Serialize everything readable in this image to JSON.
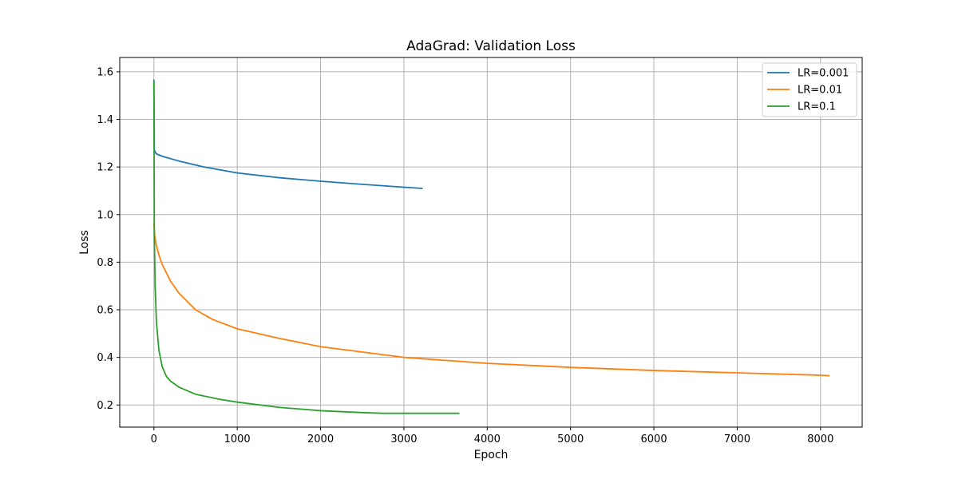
{
  "chart_data": {
    "type": "line",
    "title": "AdaGrad: Validation Loss",
    "xlabel": "Epoch",
    "ylabel": "Loss",
    "xlim": [
      -410,
      8500
    ],
    "ylim": [
      0.107,
      1.66
    ],
    "xticks": [
      0,
      1000,
      2000,
      3000,
      4000,
      5000,
      6000,
      7000,
      8000
    ],
    "yticks": [
      0.2,
      0.4,
      0.6,
      0.8,
      1.0,
      1.2,
      1.4,
      1.6
    ],
    "xtick_labels": [
      "0",
      "1000",
      "2000",
      "3000",
      "4000",
      "5000",
      "6000",
      "7000",
      "8000"
    ],
    "ytick_labels": [
      "0.2",
      "0.4",
      "0.6",
      "0.8",
      "1.0",
      "1.2",
      "1.4",
      "1.6"
    ],
    "grid": true,
    "legend_position": "top-right",
    "series": [
      {
        "name": "LR=0.001",
        "color": "#1f77b4",
        "x": [
          0,
          5,
          30,
          100,
          300,
          600,
          1000,
          1500,
          2000,
          2500,
          3000,
          3220
        ],
        "y": [
          1.565,
          1.27,
          1.255,
          1.245,
          1.225,
          1.2,
          1.175,
          1.155,
          1.14,
          1.127,
          1.115,
          1.11
        ]
      },
      {
        "name": "LR=0.01",
        "color": "#ff7f0e",
        "x": [
          0,
          10,
          30,
          60,
          100,
          200,
          300,
          500,
          700,
          1000,
          1500,
          2000,
          3000,
          4000,
          5000,
          6000,
          7000,
          8000,
          8100
        ],
        "y": [
          0.96,
          0.91,
          0.87,
          0.83,
          0.79,
          0.72,
          0.67,
          0.6,
          0.56,
          0.52,
          0.48,
          0.445,
          0.4,
          0.375,
          0.358,
          0.345,
          0.335,
          0.325,
          0.323
        ]
      },
      {
        "name": "LR=0.1",
        "color": "#2ca02c",
        "x": [
          0,
          5,
          15,
          30,
          60,
          100,
          150,
          200,
          300,
          500,
          800,
          1000,
          1500,
          2000,
          2500,
          2750,
          3000,
          3660
        ],
        "y": [
          1.56,
          0.9,
          0.7,
          0.55,
          0.43,
          0.36,
          0.32,
          0.3,
          0.275,
          0.245,
          0.223,
          0.212,
          0.19,
          0.176,
          0.168,
          0.165,
          0.165,
          0.165
        ]
      }
    ]
  }
}
